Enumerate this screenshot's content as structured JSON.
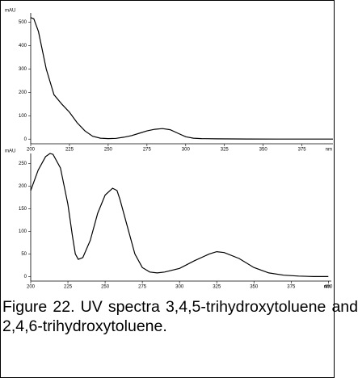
{
  "chart_data": [
    {
      "type": "line",
      "y_label": "mAU",
      "x_label": "nm",
      "x": [
        200,
        202,
        205,
        210,
        215,
        220,
        225,
        230,
        235,
        240,
        245,
        250,
        255,
        260,
        265,
        270,
        275,
        280,
        285,
        290,
        295,
        300,
        305,
        310,
        320,
        340,
        360,
        380,
        395
      ],
      "values": [
        520,
        515,
        460,
        300,
        190,
        150,
        115,
        70,
        35,
        12,
        4,
        2,
        3,
        8,
        15,
        25,
        35,
        42,
        45,
        40,
        25,
        10,
        4,
        2,
        1,
        0.5,
        0,
        0,
        0
      ],
      "color": "#000000",
      "xlim": [
        200,
        395
      ],
      "xticks": [
        200,
        225,
        250,
        275,
        300,
        325,
        350,
        375
      ],
      "ylim": [
        -20,
        540
      ],
      "yticks": [
        0,
        100,
        200,
        300,
        400,
        500
      ]
    },
    {
      "type": "line",
      "y_label": "mAU",
      "x_label": "nm",
      "x": [
        200,
        205,
        210,
        213,
        215,
        220,
        225,
        228,
        230,
        232,
        235,
        240,
        245,
        250,
        255,
        258,
        260,
        265,
        270,
        275,
        280,
        285,
        290,
        300,
        310,
        320,
        325,
        330,
        340,
        350,
        360,
        370,
        380,
        390,
        400
      ],
      "values": [
        190,
        235,
        265,
        272,
        270,
        240,
        160,
        90,
        50,
        38,
        42,
        80,
        140,
        180,
        195,
        190,
        170,
        110,
        50,
        20,
        10,
        8,
        10,
        18,
        35,
        50,
        55,
        53,
        40,
        20,
        8,
        3,
        1,
        0,
        0
      ],
      "color": "#000000",
      "xlim": [
        200,
        402
      ],
      "xticks": [
        200,
        225,
        250,
        275,
        300,
        325,
        350,
        375,
        400
      ],
      "ylim": [
        -10,
        272
      ],
      "yticks": [
        0,
        50,
        100,
        150,
        200,
        250
      ]
    }
  ],
  "caption": "Figure 22. UV spectra 3,4,5-trihydroxytoluene and 2,4,6-trihydroxytoluene."
}
